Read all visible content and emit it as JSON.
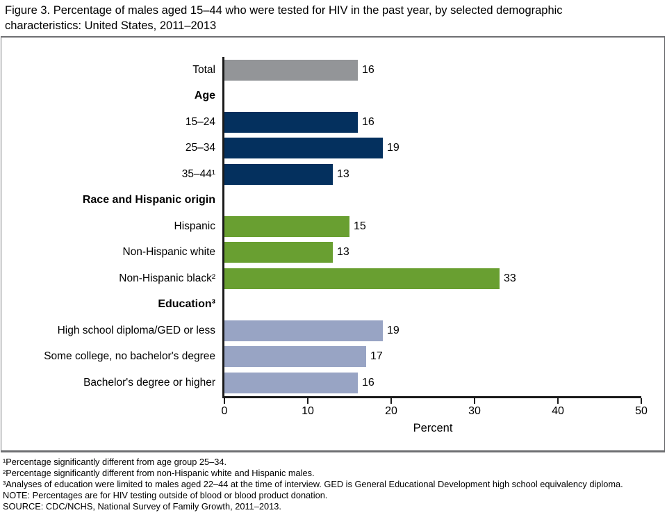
{
  "title": "Figure 3. Percentage of males aged 15–44 who were tested for HIV in the past year, by selected demographic characteristics: United States, 2011–2013",
  "chart_data": {
    "type": "bar",
    "orientation": "horizontal",
    "xlabel": "Percent",
    "xlim": [
      0,
      50
    ],
    "xticks": [
      0,
      10,
      20,
      30,
      40,
      50
    ],
    "grid": false,
    "legend": "none",
    "colors": {
      "total": "#939598",
      "age": "#04305e",
      "race": "#699f31",
      "education": "#98a4c4"
    },
    "rows": [
      {
        "kind": "bar",
        "label": "Total",
        "value": 16,
        "group": "total"
      },
      {
        "kind": "header",
        "label": "Age"
      },
      {
        "kind": "bar",
        "label": "15–24",
        "value": 16,
        "group": "age"
      },
      {
        "kind": "bar",
        "label": "25–34",
        "value": 19,
        "group": "age"
      },
      {
        "kind": "bar",
        "label": "35–44¹",
        "value": 13,
        "group": "age"
      },
      {
        "kind": "header",
        "label": "Race and Hispanic origin"
      },
      {
        "kind": "bar",
        "label": "Hispanic",
        "value": 15,
        "group": "race"
      },
      {
        "kind": "bar",
        "label": "Non-Hispanic white",
        "value": 13,
        "group": "race"
      },
      {
        "kind": "bar",
        "label": "Non-Hispanic black²",
        "value": 33,
        "group": "race"
      },
      {
        "kind": "header",
        "label": "Education³"
      },
      {
        "kind": "bar",
        "label": "High school diploma/GED or less",
        "value": 19,
        "group": "education"
      },
      {
        "kind": "bar",
        "label": "Some college, no bachelor's degree",
        "value": 17,
        "group": "education"
      },
      {
        "kind": "bar",
        "label": "Bachelor's degree or higher",
        "value": 16,
        "group": "education"
      }
    ]
  },
  "footnotes": [
    "¹Percentage significantly different from age group 25–34.",
    "²Percentage significantly different from non-Hispanic white and Hispanic males.",
    "³Analyses of education were limited to males aged 22–44 at the time of interview. GED is General Educational Development high school equivalency diploma.",
    "NOTE: Percentages are for HIV testing outside of blood or blood product donation.",
    "SOURCE: CDC/NCHS, National Survey of Family Growth, 2011–2013."
  ]
}
